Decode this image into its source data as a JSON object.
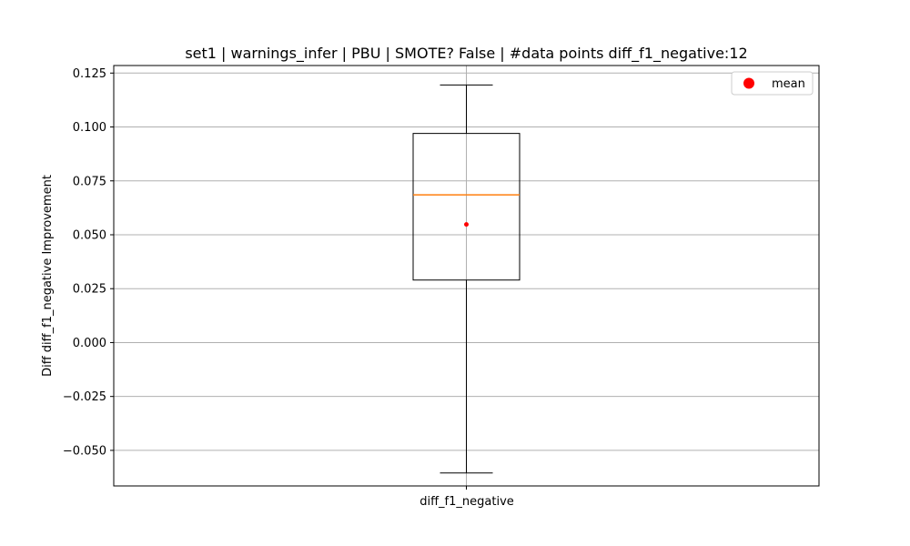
{
  "chart_data": {
    "type": "box",
    "title": "set1 | warnings_infer | PBU | SMOTE? False | #data points diff_f1_negative:12",
    "xlabel": "",
    "ylabel": "Diff diff_f1_negative Improvement",
    "categories": [
      "diff_f1_negative"
    ],
    "ylim": [
      -0.0665,
      0.1285
    ],
    "yticks": [
      -0.05,
      -0.025,
      0.0,
      0.025,
      0.05,
      0.075,
      0.1,
      0.125
    ],
    "ytick_labels": [
      "−0.050",
      "−0.025",
      "0.000",
      "0.025",
      "0.050",
      "0.075",
      "0.100",
      "0.125"
    ],
    "grid": true,
    "legend": {
      "position": "top-right",
      "entries": [
        "mean"
      ]
    },
    "boxes": [
      {
        "name": "diff_f1_negative",
        "whisker_low": -0.0605,
        "q1": 0.029,
        "median": 0.0685,
        "q3": 0.097,
        "whisker_high": 0.1195,
        "mean": 0.0548,
        "n": 12
      }
    ],
    "colors": {
      "median": "#ff7f0e",
      "mean": "#ff0000",
      "box": "#000000",
      "grid": "#b0b0b0"
    }
  }
}
